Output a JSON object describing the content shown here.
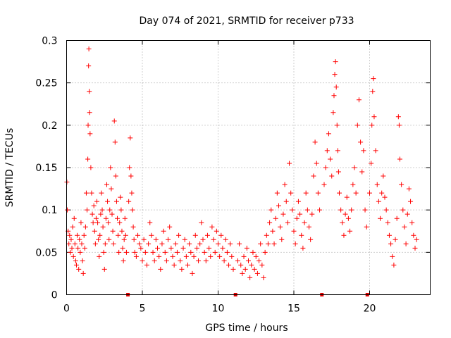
{
  "chart_data": {
    "type": "scatter",
    "title": "Day 074 of 2021, SRMTID for receiver p733",
    "xlabel": "GPS time / hours",
    "ylabel": "SRMTID / TECUs",
    "xlim": [
      0,
      24
    ],
    "ylim": [
      0,
      0.3
    ],
    "x_ticks": [
      0,
      5,
      10,
      15,
      20
    ],
    "x_tick_labels": [
      "0",
      "5",
      "10",
      "15",
      "20"
    ],
    "y_ticks": [
      0,
      0.05,
      0.1,
      0.15,
      0.2,
      0.25,
      0.3
    ],
    "y_tick_labels": [
      "0",
      "0.05",
      "0.1",
      "0.15",
      "0.2",
      "0.25",
      "0.3"
    ],
    "grid": true,
    "marker": "+",
    "color": "#ff0000",
    "gap_markers_x": [
      4.05,
      11.15,
      16.85,
      19.85
    ],
    "series": [
      {
        "name": "SRMTID",
        "points": [
          [
            0.02,
            0.133
          ],
          [
            0.05,
            0.1
          ],
          [
            0.1,
            0.075
          ],
          [
            0.15,
            0.06
          ],
          [
            0.2,
            0.07
          ],
          [
            0.25,
            0.05
          ],
          [
            0.3,
            0.065
          ],
          [
            0.35,
            0.055
          ],
          [
            0.4,
            0.08
          ],
          [
            0.45,
            0.045
          ],
          [
            0.5,
            0.09
          ],
          [
            0.55,
            0.06
          ],
          [
            0.6,
            0.04
          ],
          [
            0.65,
            0.035
          ],
          [
            0.7,
            0.07
          ],
          [
            0.75,
            0.055
          ],
          [
            0.8,
            0.03
          ],
          [
            0.85,
            0.065
          ],
          [
            0.9,
            0.05
          ],
          [
            0.95,
            0.085
          ],
          [
            1.0,
            0.06
          ],
          [
            1.05,
            0.04
          ],
          [
            1.1,
            0.025
          ],
          [
            1.15,
            0.07
          ],
          [
            1.2,
            0.055
          ],
          [
            1.25,
            0.08
          ],
          [
            1.3,
            0.12
          ],
          [
            1.35,
            0.1
          ],
          [
            1.4,
            0.16
          ],
          [
            1.42,
            0.2
          ],
          [
            1.45,
            0.27
          ],
          [
            1.47,
            0.29
          ],
          [
            1.5,
            0.24
          ],
          [
            1.52,
            0.215
          ],
          [
            1.55,
            0.19
          ],
          [
            1.6,
            0.15
          ],
          [
            1.65,
            0.12
          ],
          [
            1.7,
            0.095
          ],
          [
            1.75,
            0.085
          ],
          [
            1.8,
            0.105
          ],
          [
            1.85,
            0.075
          ],
          [
            1.9,
            0.06
          ],
          [
            1.95,
            0.09
          ],
          [
            2.0,
            0.11
          ],
          [
            2.05,
            0.085
          ],
          [
            2.1,
            0.065
          ],
          [
            2.15,
            0.045
          ],
          [
            2.2,
            0.07
          ],
          [
            2.25,
            0.095
          ],
          [
            2.3,
            0.12
          ],
          [
            2.35,
            0.1
          ],
          [
            2.4,
            0.08
          ],
          [
            2.45,
            0.05
          ],
          [
            2.5,
            0.03
          ],
          [
            2.55,
            0.06
          ],
          [
            2.6,
            0.09
          ],
          [
            2.65,
            0.13
          ],
          [
            2.7,
            0.11
          ],
          [
            2.75,
            0.085
          ],
          [
            2.8,
            0.065
          ],
          [
            2.85,
            0.1
          ],
          [
            2.9,
            0.15
          ],
          [
            2.95,
            0.125
          ],
          [
            3.0,
            0.095
          ],
          [
            3.05,
            0.075
          ],
          [
            3.1,
            0.06
          ],
          [
            3.15,
            0.205
          ],
          [
            3.2,
            0.18
          ],
          [
            3.25,
            0.14
          ],
          [
            3.3,
            0.11
          ],
          [
            3.35,
            0.09
          ],
          [
            3.4,
            0.07
          ],
          [
            3.45,
            0.05
          ],
          [
            3.5,
            0.085
          ],
          [
            3.55,
            0.115
          ],
          [
            3.6,
            0.1
          ],
          [
            3.65,
            0.075
          ],
          [
            3.7,
            0.055
          ],
          [
            3.75,
            0.04
          ],
          [
            3.8,
            0.065
          ],
          [
            3.85,
            0.09
          ],
          [
            3.9,
            0.07
          ],
          [
            3.95,
            0.05
          ],
          [
            4.1,
            0.11
          ],
          [
            4.15,
            0.15
          ],
          [
            4.2,
            0.185
          ],
          [
            4.25,
            0.14
          ],
          [
            4.3,
            0.12
          ],
          [
            4.35,
            0.1
          ],
          [
            4.4,
            0.08
          ],
          [
            4.45,
            0.065
          ],
          [
            4.5,
            0.05
          ],
          [
            4.6,
            0.045
          ],
          [
            4.7,
            0.07
          ],
          [
            4.8,
            0.06
          ],
          [
            4.9,
            0.055
          ],
          [
            5.0,
            0.04
          ],
          [
            5.1,
            0.065
          ],
          [
            5.2,
            0.05
          ],
          [
            5.3,
            0.035
          ],
          [
            5.4,
            0.06
          ],
          [
            5.5,
            0.085
          ],
          [
            5.6,
            0.07
          ],
          [
            5.7,
            0.05
          ],
          [
            5.8,
            0.04
          ],
          [
            5.9,
            0.065
          ],
          [
            6.0,
            0.055
          ],
          [
            6.1,
            0.045
          ],
          [
            6.2,
            0.03
          ],
          [
            6.3,
            0.06
          ],
          [
            6.4,
            0.075
          ],
          [
            6.5,
            0.05
          ],
          [
            6.6,
            0.04
          ],
          [
            6.7,
            0.065
          ],
          [
            6.8,
            0.08
          ],
          [
            6.9,
            0.055
          ],
          [
            7.0,
            0.045
          ],
          [
            7.1,
            0.035
          ],
          [
            7.2,
            0.06
          ],
          [
            7.3,
            0.05
          ],
          [
            7.4,
            0.07
          ],
          [
            7.5,
            0.04
          ],
          [
            7.6,
            0.03
          ],
          [
            7.7,
            0.055
          ],
          [
            7.8,
            0.065
          ],
          [
            7.9,
            0.045
          ],
          [
            8.0,
            0.035
          ],
          [
            8.1,
            0.06
          ],
          [
            8.2,
            0.05
          ],
          [
            8.3,
            0.025
          ],
          [
            8.4,
            0.045
          ],
          [
            8.5,
            0.07
          ],
          [
            8.6,
            0.055
          ],
          [
            8.7,
            0.04
          ],
          [
            8.8,
            0.06
          ],
          [
            8.9,
            0.085
          ],
          [
            9.0,
            0.065
          ],
          [
            9.1,
            0.05
          ],
          [
            9.2,
            0.04
          ],
          [
            9.3,
            0.07
          ],
          [
            9.4,
            0.055
          ],
          [
            9.5,
            0.045
          ],
          [
            9.6,
            0.08
          ],
          [
            9.7,
            0.065
          ],
          [
            9.8,
            0.05
          ],
          [
            9.9,
            0.075
          ],
          [
            10.0,
            0.06
          ],
          [
            10.1,
            0.045
          ],
          [
            10.2,
            0.07
          ],
          [
            10.3,
            0.055
          ],
          [
            10.4,
            0.04
          ],
          [
            10.5,
            0.065
          ],
          [
            10.6,
            0.05
          ],
          [
            10.7,
            0.035
          ],
          [
            10.8,
            0.06
          ],
          [
            10.9,
            0.045
          ],
          [
            11.0,
            0.03
          ],
          [
            11.3,
            0.04
          ],
          [
            11.4,
            0.06
          ],
          [
            11.5,
            0.035
          ],
          [
            11.6,
            0.025
          ],
          [
            11.7,
            0.045
          ],
          [
            11.8,
            0.03
          ],
          [
            11.9,
            0.055
          ],
          [
            12.0,
            0.04
          ],
          [
            12.1,
            0.02
          ],
          [
            12.2,
            0.035
          ],
          [
            12.3,
            0.05
          ],
          [
            12.4,
            0.03
          ],
          [
            12.5,
            0.045
          ],
          [
            12.6,
            0.025
          ],
          [
            12.7,
            0.04
          ],
          [
            12.8,
            0.06
          ],
          [
            12.9,
            0.035
          ],
          [
            13.0,
            0.02
          ],
          [
            13.1,
            0.05
          ],
          [
            13.2,
            0.07
          ],
          [
            13.3,
            0.06
          ],
          [
            13.4,
            0.085
          ],
          [
            13.5,
            0.1
          ],
          [
            13.6,
            0.075
          ],
          [
            13.7,
            0.06
          ],
          [
            13.8,
            0.09
          ],
          [
            13.9,
            0.12
          ],
          [
            14.0,
            0.105
          ],
          [
            14.1,
            0.08
          ],
          [
            14.2,
            0.065
          ],
          [
            14.3,
            0.095
          ],
          [
            14.4,
            0.13
          ],
          [
            14.5,
            0.11
          ],
          [
            14.6,
            0.085
          ],
          [
            14.7,
            0.155
          ],
          [
            14.8,
            0.12
          ],
          [
            14.9,
            0.1
          ],
          [
            15.0,
            0.075
          ],
          [
            15.1,
            0.06
          ],
          [
            15.2,
            0.09
          ],
          [
            15.3,
            0.11
          ],
          [
            15.4,
            0.095
          ],
          [
            15.5,
            0.07
          ],
          [
            15.6,
            0.055
          ],
          [
            15.7,
            0.085
          ],
          [
            15.8,
            0.12
          ],
          [
            15.9,
            0.1
          ],
          [
            16.0,
            0.08
          ],
          [
            16.1,
            0.065
          ],
          [
            16.2,
            0.095
          ],
          [
            16.3,
            0.14
          ],
          [
            16.4,
            0.18
          ],
          [
            16.5,
            0.155
          ],
          [
            16.6,
            0.12
          ],
          [
            16.7,
            0.1
          ],
          [
            17.0,
            0.13
          ],
          [
            17.1,
            0.15
          ],
          [
            17.2,
            0.17
          ],
          [
            17.3,
            0.19
          ],
          [
            17.4,
            0.16
          ],
          [
            17.5,
            0.14
          ],
          [
            17.6,
            0.215
          ],
          [
            17.65,
            0.235
          ],
          [
            17.7,
            0.26
          ],
          [
            17.75,
            0.275
          ],
          [
            17.8,
            0.245
          ],
          [
            17.85,
            0.2
          ],
          [
            17.9,
            0.17
          ],
          [
            17.95,
            0.145
          ],
          [
            18.0,
            0.12
          ],
          [
            18.1,
            0.1
          ],
          [
            18.2,
            0.085
          ],
          [
            18.3,
            0.07
          ],
          [
            18.4,
            0.095
          ],
          [
            18.5,
            0.115
          ],
          [
            18.6,
            0.09
          ],
          [
            18.7,
            0.075
          ],
          [
            18.8,
            0.1
          ],
          [
            18.9,
            0.13
          ],
          [
            19.0,
            0.15
          ],
          [
            19.1,
            0.12
          ],
          [
            19.2,
            0.2
          ],
          [
            19.3,
            0.23
          ],
          [
            19.4,
            0.18
          ],
          [
            19.5,
            0.145
          ],
          [
            19.6,
            0.17
          ],
          [
            19.7,
            0.1
          ],
          [
            19.8,
            0.08
          ],
          [
            20.0,
            0.12
          ],
          [
            20.1,
            0.155
          ],
          [
            20.15,
            0.2
          ],
          [
            20.2,
            0.24
          ],
          [
            20.25,
            0.255
          ],
          [
            20.3,
            0.21
          ],
          [
            20.4,
            0.17
          ],
          [
            20.5,
            0.13
          ],
          [
            20.6,
            0.11
          ],
          [
            20.7,
            0.09
          ],
          [
            20.8,
            0.12
          ],
          [
            20.9,
            0.14
          ],
          [
            21.0,
            0.115
          ],
          [
            21.1,
            0.1
          ],
          [
            21.2,
            0.085
          ],
          [
            21.3,
            0.07
          ],
          [
            21.4,
            0.06
          ],
          [
            21.5,
            0.045
          ],
          [
            21.6,
            0.035
          ],
          [
            21.7,
            0.065
          ],
          [
            21.8,
            0.09
          ],
          [
            21.9,
            0.21
          ],
          [
            21.95,
            0.2
          ],
          [
            22.0,
            0.16
          ],
          [
            22.1,
            0.13
          ],
          [
            22.2,
            0.1
          ],
          [
            22.3,
            0.08
          ],
          [
            22.4,
            0.06
          ],
          [
            22.5,
            0.095
          ],
          [
            22.6,
            0.125
          ],
          [
            22.7,
            0.11
          ],
          [
            22.8,
            0.085
          ],
          [
            22.9,
            0.07
          ],
          [
            23.0,
            0.055
          ],
          [
            23.1,
            0.065
          ]
        ]
      }
    ]
  }
}
